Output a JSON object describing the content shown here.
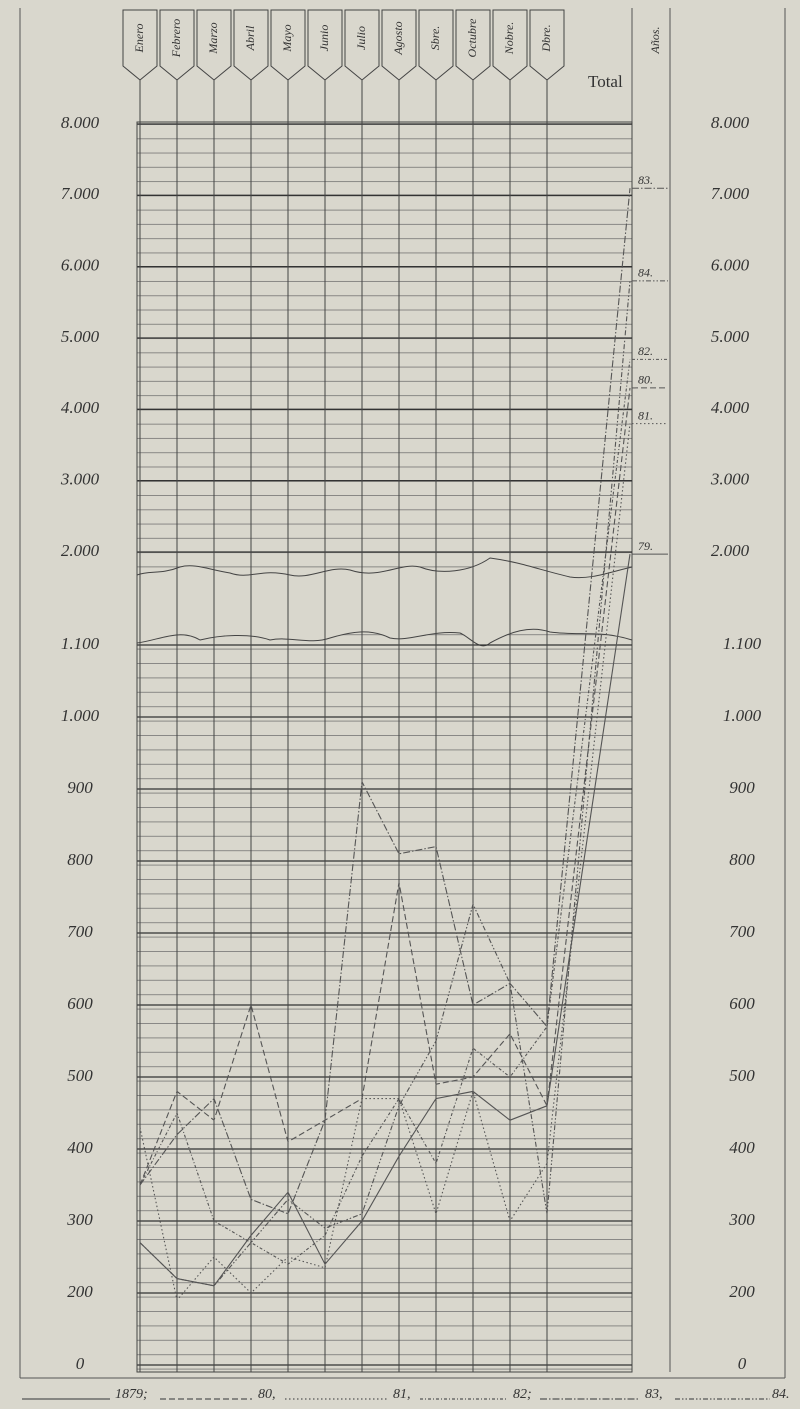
{
  "chart_data": {
    "type": "line",
    "categories": [
      "Enero",
      "Febrero",
      "Marzo",
      "Abril",
      "Mayo",
      "Junio",
      "Julio",
      "Agosto",
      "Sbre.",
      "Octubre",
      "Nobre.",
      "Dbre."
    ],
    "total_header": "Total",
    "years_header": "Años.",
    "ylim": [
      200,
      1100
    ],
    "yticks": [
      0,
      200,
      300,
      400,
      500,
      600,
      700,
      800,
      900,
      {
        "value": 1000,
        "label": "1.000"
      },
      {
        "value": 1100,
        "label": "1.100"
      }
    ],
    "y2lim": [
      2000,
      8000
    ],
    "y2ticks": [
      {
        "value": 2000,
        "label": "2.000"
      },
      {
        "value": 3000,
        "label": "3.000"
      },
      {
        "value": 4000,
        "label": "4.000"
      },
      {
        "value": 5000,
        "label": "5.000"
      },
      {
        "value": 6000,
        "label": "6.000"
      },
      {
        "value": 7000,
        "label": "7.000"
      },
      {
        "value": 8000,
        "label": "8.000"
      }
    ],
    "grid": true,
    "series": [
      {
        "name": "1879;",
        "color": "#555",
        "dash": "none",
        "values": [
          270,
          220,
          210,
          280,
          340,
          240,
          300,
          390,
          470,
          480,
          440,
          460
        ],
        "total": 1970,
        "total_label": "79."
      },
      {
        "name": "80,",
        "color": "#555",
        "dash": "6 3",
        "values": [
          350,
          480,
          440,
          600,
          410,
          440,
          470,
          770,
          490,
          500,
          560,
          460
        ],
        "total": 4300,
        "total_label": "80."
      },
      {
        "name": "81,",
        "color": "#555",
        "dash": "1.5 2.5",
        "values": [
          430,
          190,
          250,
          200,
          250,
          235,
          470,
          470,
          310,
          480,
          300,
          380
        ],
        "total": 3800,
        "total_label": "81."
      },
      {
        "name": "82;",
        "color": "#555",
        "dash": "3 2 1 2",
        "values": [
          350,
          450,
          300,
          270,
          240,
          280,
          390,
          470,
          380,
          540,
          500,
          570
        ],
        "total": 4700,
        "total_label": "82."
      },
      {
        "name": "83,",
        "color": "#555",
        "dash": "7 2 1.5 2",
        "values": [
          350,
          420,
          470,
          330,
          310,
          440,
          910,
          810,
          820,
          600,
          630,
          570
        ],
        "total": 7100,
        "total_label": "83."
      },
      {
        "name": "84.",
        "color": "#555",
        "dash": "5 2 1.5 2 1.5 2",
        "values": [
          270,
          220,
          210,
          270,
          330,
          290,
          310,
          460,
          550,
          740,
          630,
          310
        ],
        "total": 5800,
        "total_label": "84."
      }
    ]
  }
}
